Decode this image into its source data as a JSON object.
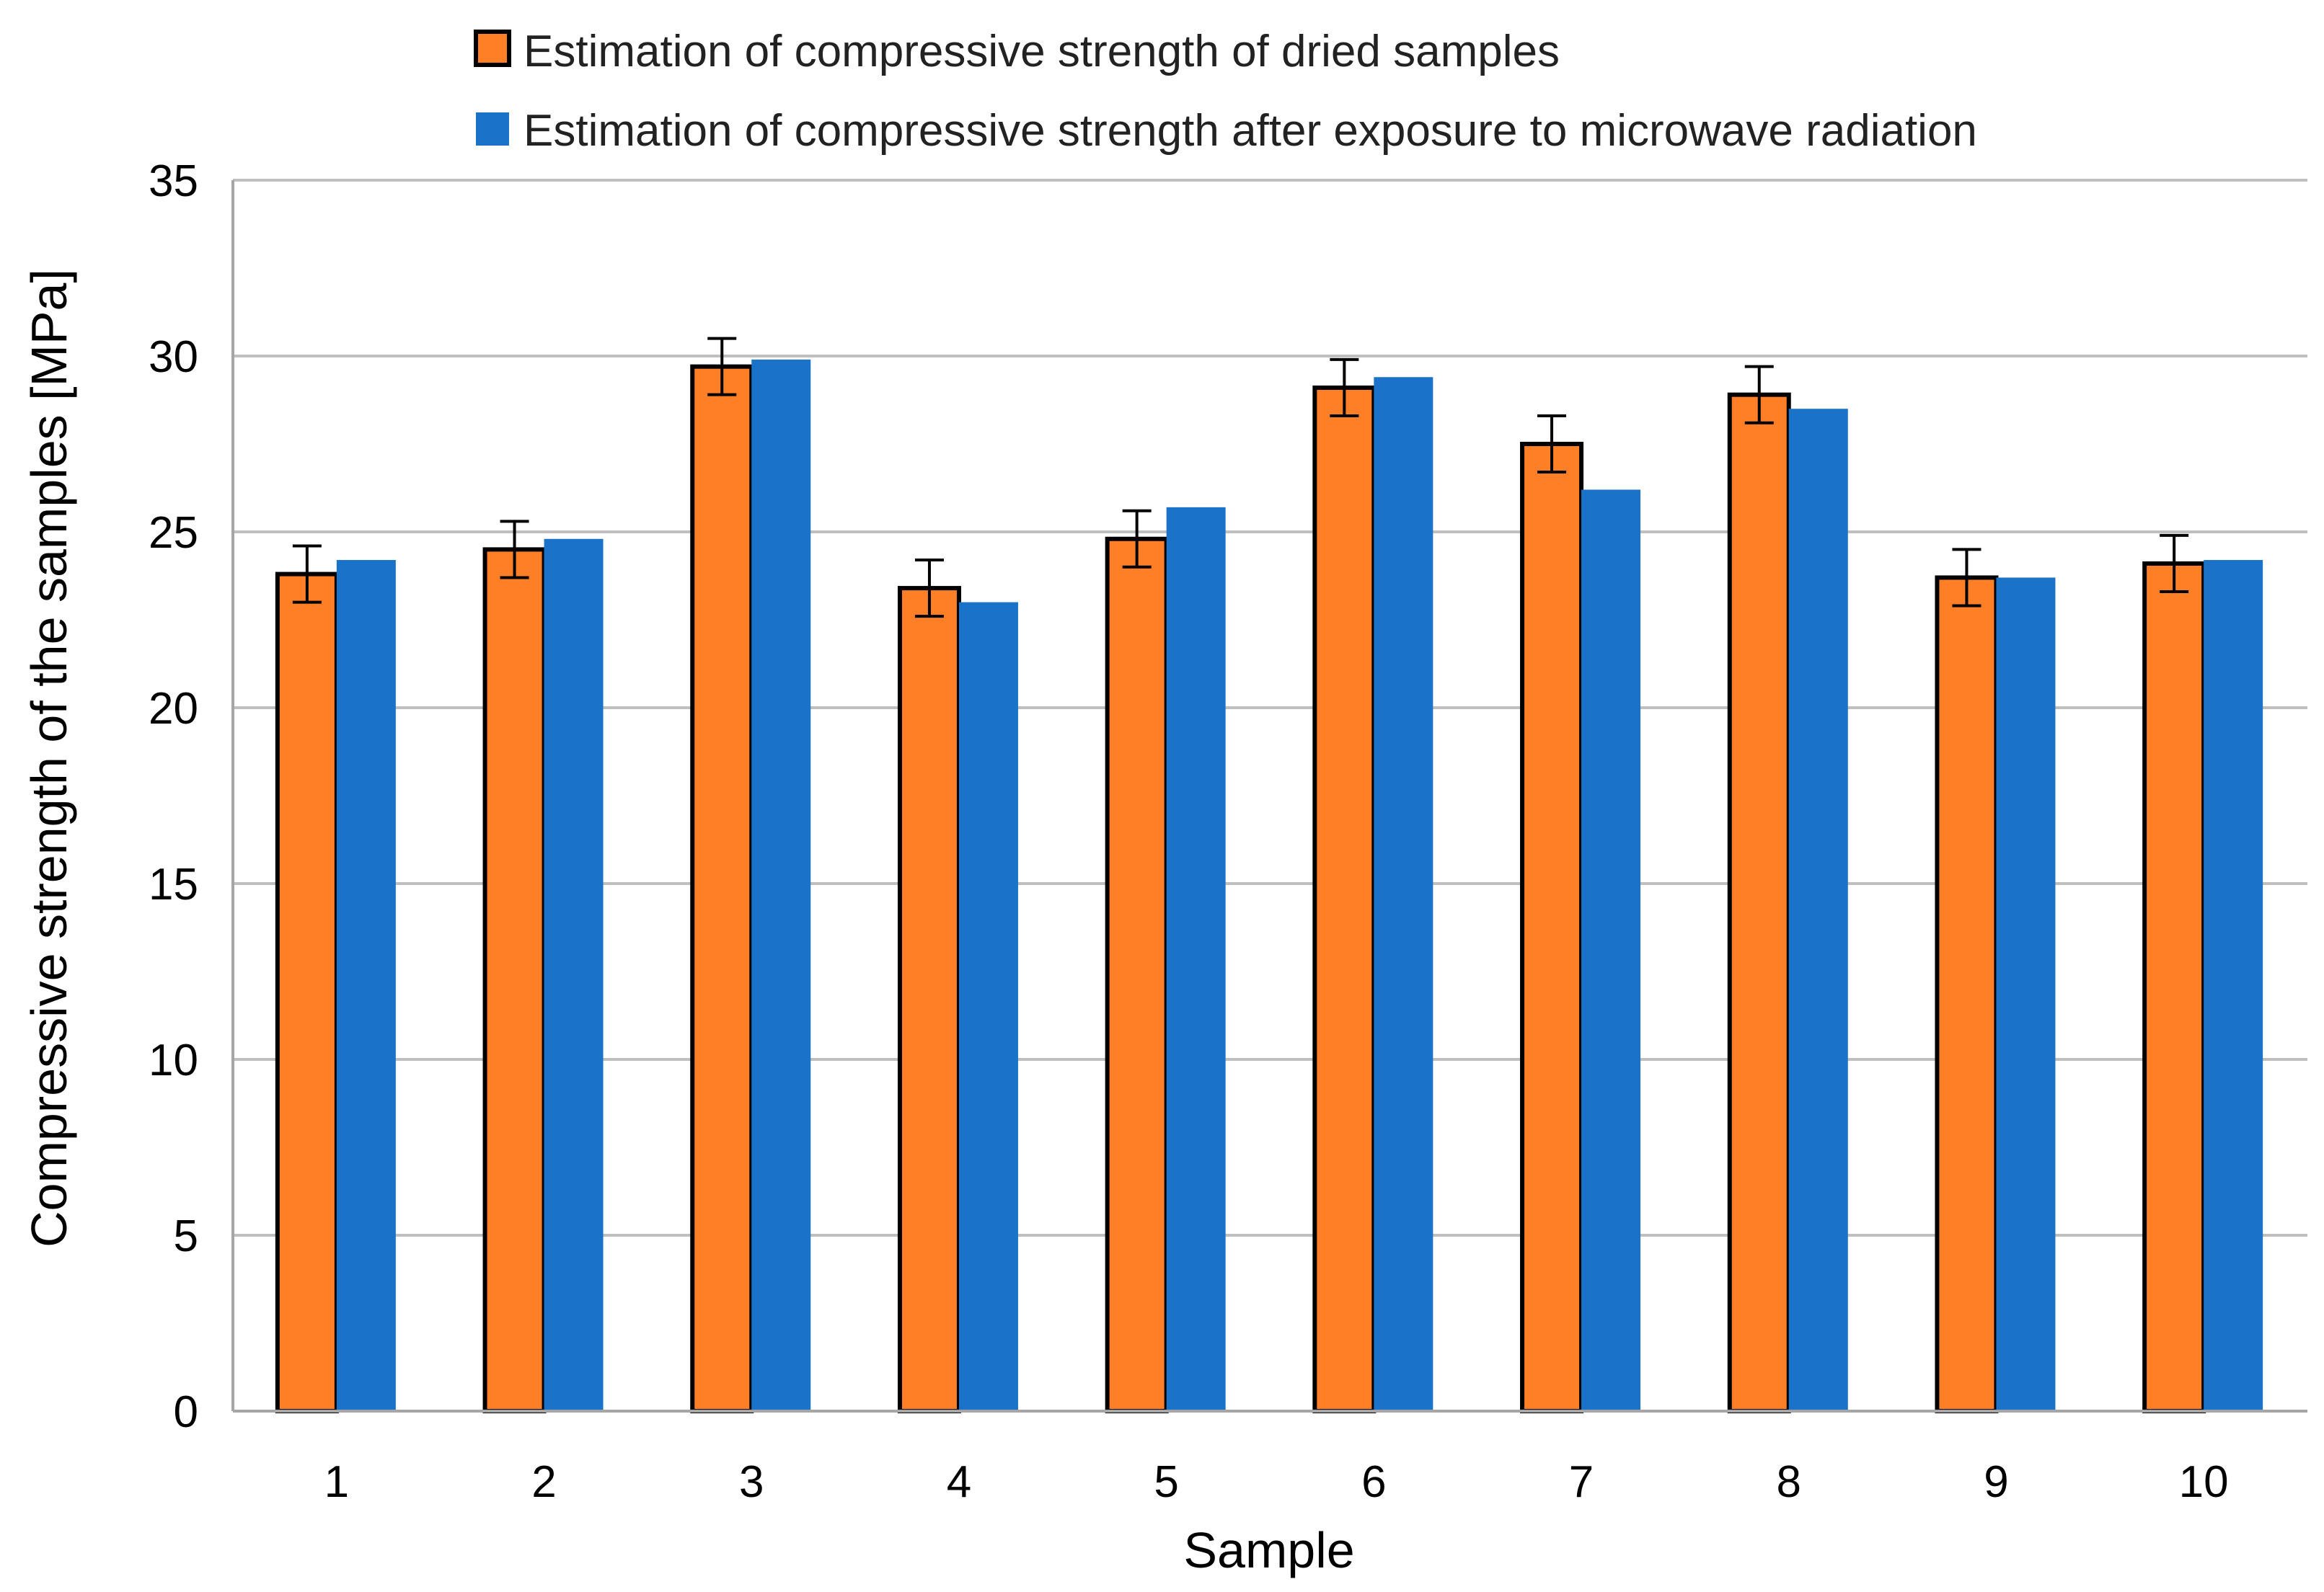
{
  "chart_data": {
    "type": "bar",
    "title": "",
    "xlabel": "Sample",
    "ylabel": "Compressive strength of the samples [MPa]",
    "categories": [
      "1",
      "2",
      "3",
      "4",
      "5",
      "6",
      "7",
      "8",
      "9",
      "10"
    ],
    "ylim": [
      0,
      35
    ],
    "yticks": [
      "0",
      "5",
      "10",
      "15",
      "20",
      "25",
      "30",
      "35"
    ],
    "grid": true,
    "legend_position": "top",
    "series": [
      {
        "name": "Estimation of compressive strength of dried samples",
        "color": "#FF7F27",
        "outline": "#000000",
        "values": [
          23.8,
          24.5,
          29.7,
          23.4,
          24.8,
          29.1,
          27.5,
          28.9,
          23.7,
          24.1
        ],
        "error": [
          0.8,
          0.8,
          0.8,
          0.8,
          0.8,
          0.8,
          0.8,
          0.8,
          0.8,
          0.8
        ]
      },
      {
        "name": "Estimation of compressive strength after exposure to microwave radiation",
        "color": "#1A73C8",
        "values": [
          24.2,
          24.8,
          29.9,
          23.0,
          25.7,
          29.4,
          26.2,
          28.5,
          23.7,
          24.2
        ]
      }
    ]
  }
}
